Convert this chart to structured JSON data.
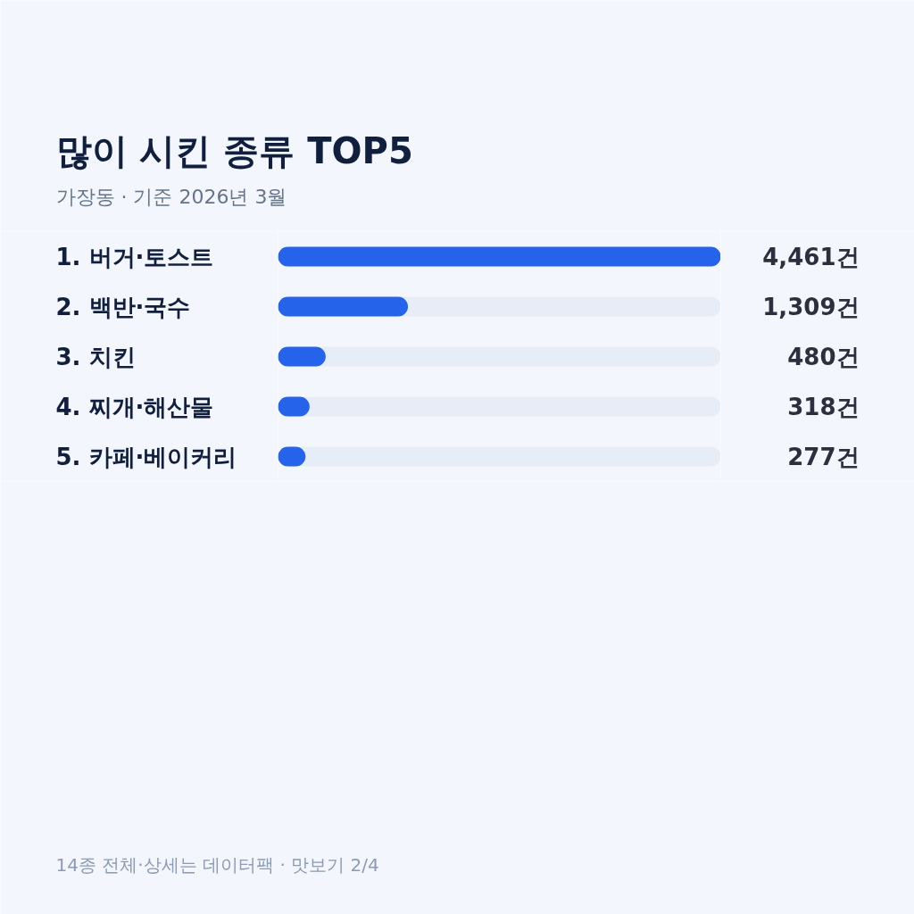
{
  "chart_data": {
    "type": "bar",
    "orientation": "horizontal",
    "title": "많이 시킨 종류 TOP5",
    "subtitle": "가장동 · 기준 2026년 3월",
    "categories": [
      "1. 버거·토스트",
      "2. 백반·국수",
      "3. 치킨",
      "4. 찌개·해산물",
      "5. 카페·베이커리"
    ],
    "values": [
      4461,
      1309,
      480,
      318,
      277
    ],
    "value_labels": [
      "4,461건",
      "1,309건",
      "480건",
      "318건",
      "277건"
    ],
    "color": "#2563eb",
    "tick_labels": "y",
    "annotations": [
      "14종 전체·상세는 데이터팩 · 맛보기 2/4"
    ]
  }
}
